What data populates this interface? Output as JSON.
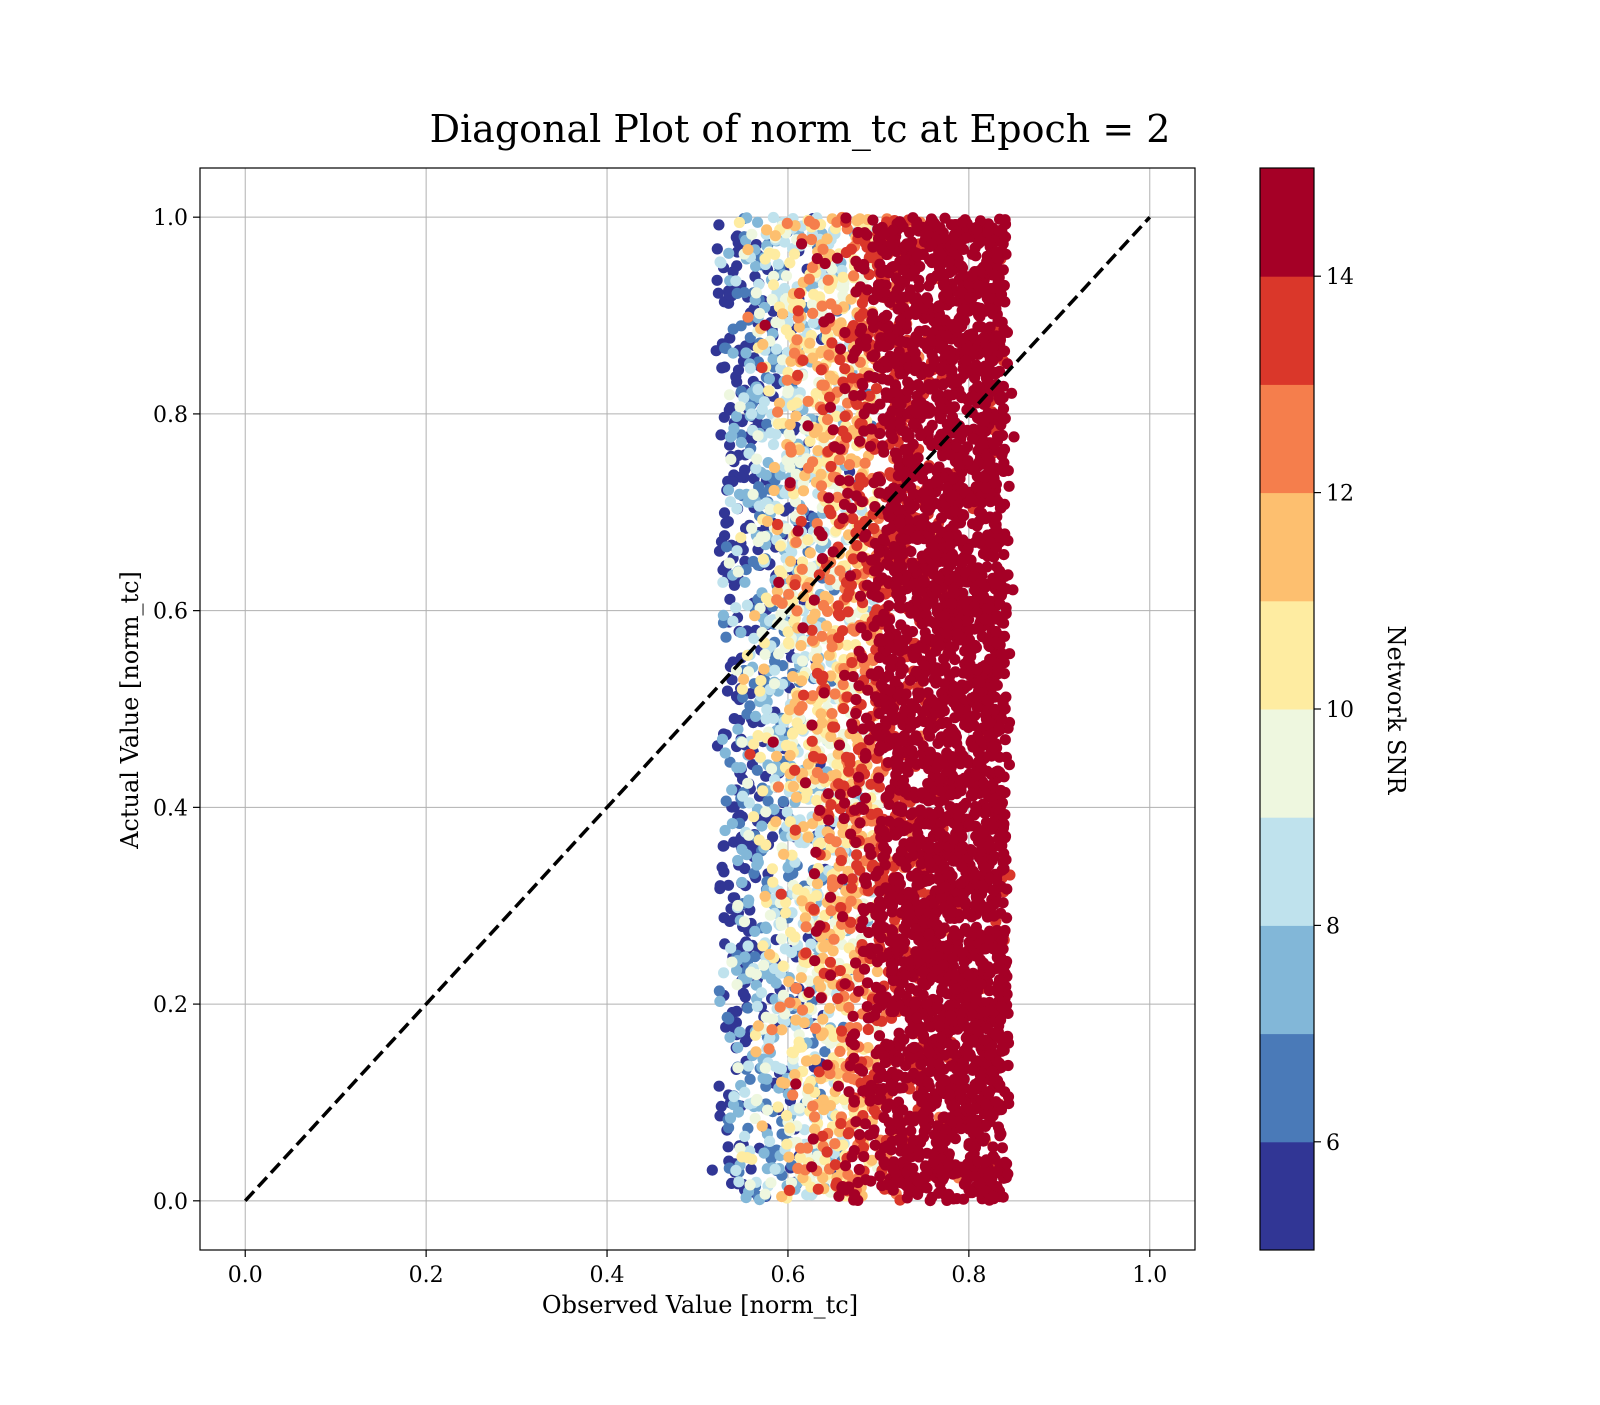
{
  "chart_data": {
    "type": "scatter",
    "title": "Diagonal Plot of norm_tc at Epoch = 2",
    "xlabel": "Observed Value [norm_tc]",
    "ylabel": "Actual Value [norm_tc]",
    "xlim": [
      -0.05,
      1.05
    ],
    "ylim": [
      -0.05,
      1.05
    ],
    "xticks": [
      0.0,
      0.2,
      0.4,
      0.6,
      0.8,
      1.0
    ],
    "xtick_labels": [
      "0.0",
      "0.2",
      "0.4",
      "0.6",
      "0.8",
      "1.0"
    ],
    "yticks": [
      0.0,
      0.2,
      0.4,
      0.6,
      0.8,
      1.0
    ],
    "ytick_labels": [
      "0.0",
      "0.2",
      "0.4",
      "0.6",
      "0.8",
      "1.0"
    ],
    "grid": true,
    "reference_line": {
      "x": [
        0.0,
        1.0
      ],
      "y": [
        0.0,
        1.0
      ],
      "style": "dashed",
      "color": "#000000"
    },
    "point_cloud": {
      "x_range": [
        0.51,
        0.855
      ],
      "y_range": [
        0.0,
        1.0
      ],
      "note_color_trend": "higher SNR toward higher observed value"
    },
    "colorbar": {
      "label": "Network SNR",
      "range": [
        5,
        15
      ],
      "ticks": [
        6,
        8,
        10,
        12,
        14
      ],
      "tick_labels": [
        "6",
        "8",
        "10",
        "12",
        "14"
      ],
      "bins": [
        {
          "from": 5,
          "to": 6,
          "color": "#313695"
        },
        {
          "from": 6,
          "to": 7,
          "color": "#4a7ab8"
        },
        {
          "from": 7,
          "to": 8,
          "color": "#82b7d8"
        },
        {
          "from": 8,
          "to": 9,
          "color": "#bfe2ed"
        },
        {
          "from": 9,
          "to": 10,
          "color": "#eef7df"
        },
        {
          "from": 10,
          "to": 11,
          "color": "#feeca1"
        },
        {
          "from": 11,
          "to": 12,
          "color": "#fdbf6f"
        },
        {
          "from": 12,
          "to": 13,
          "color": "#f57e4c"
        },
        {
          "from": 13,
          "to": 14,
          "color": "#da372a"
        },
        {
          "from": 14,
          "to": 15,
          "color": "#a50026"
        }
      ]
    }
  }
}
